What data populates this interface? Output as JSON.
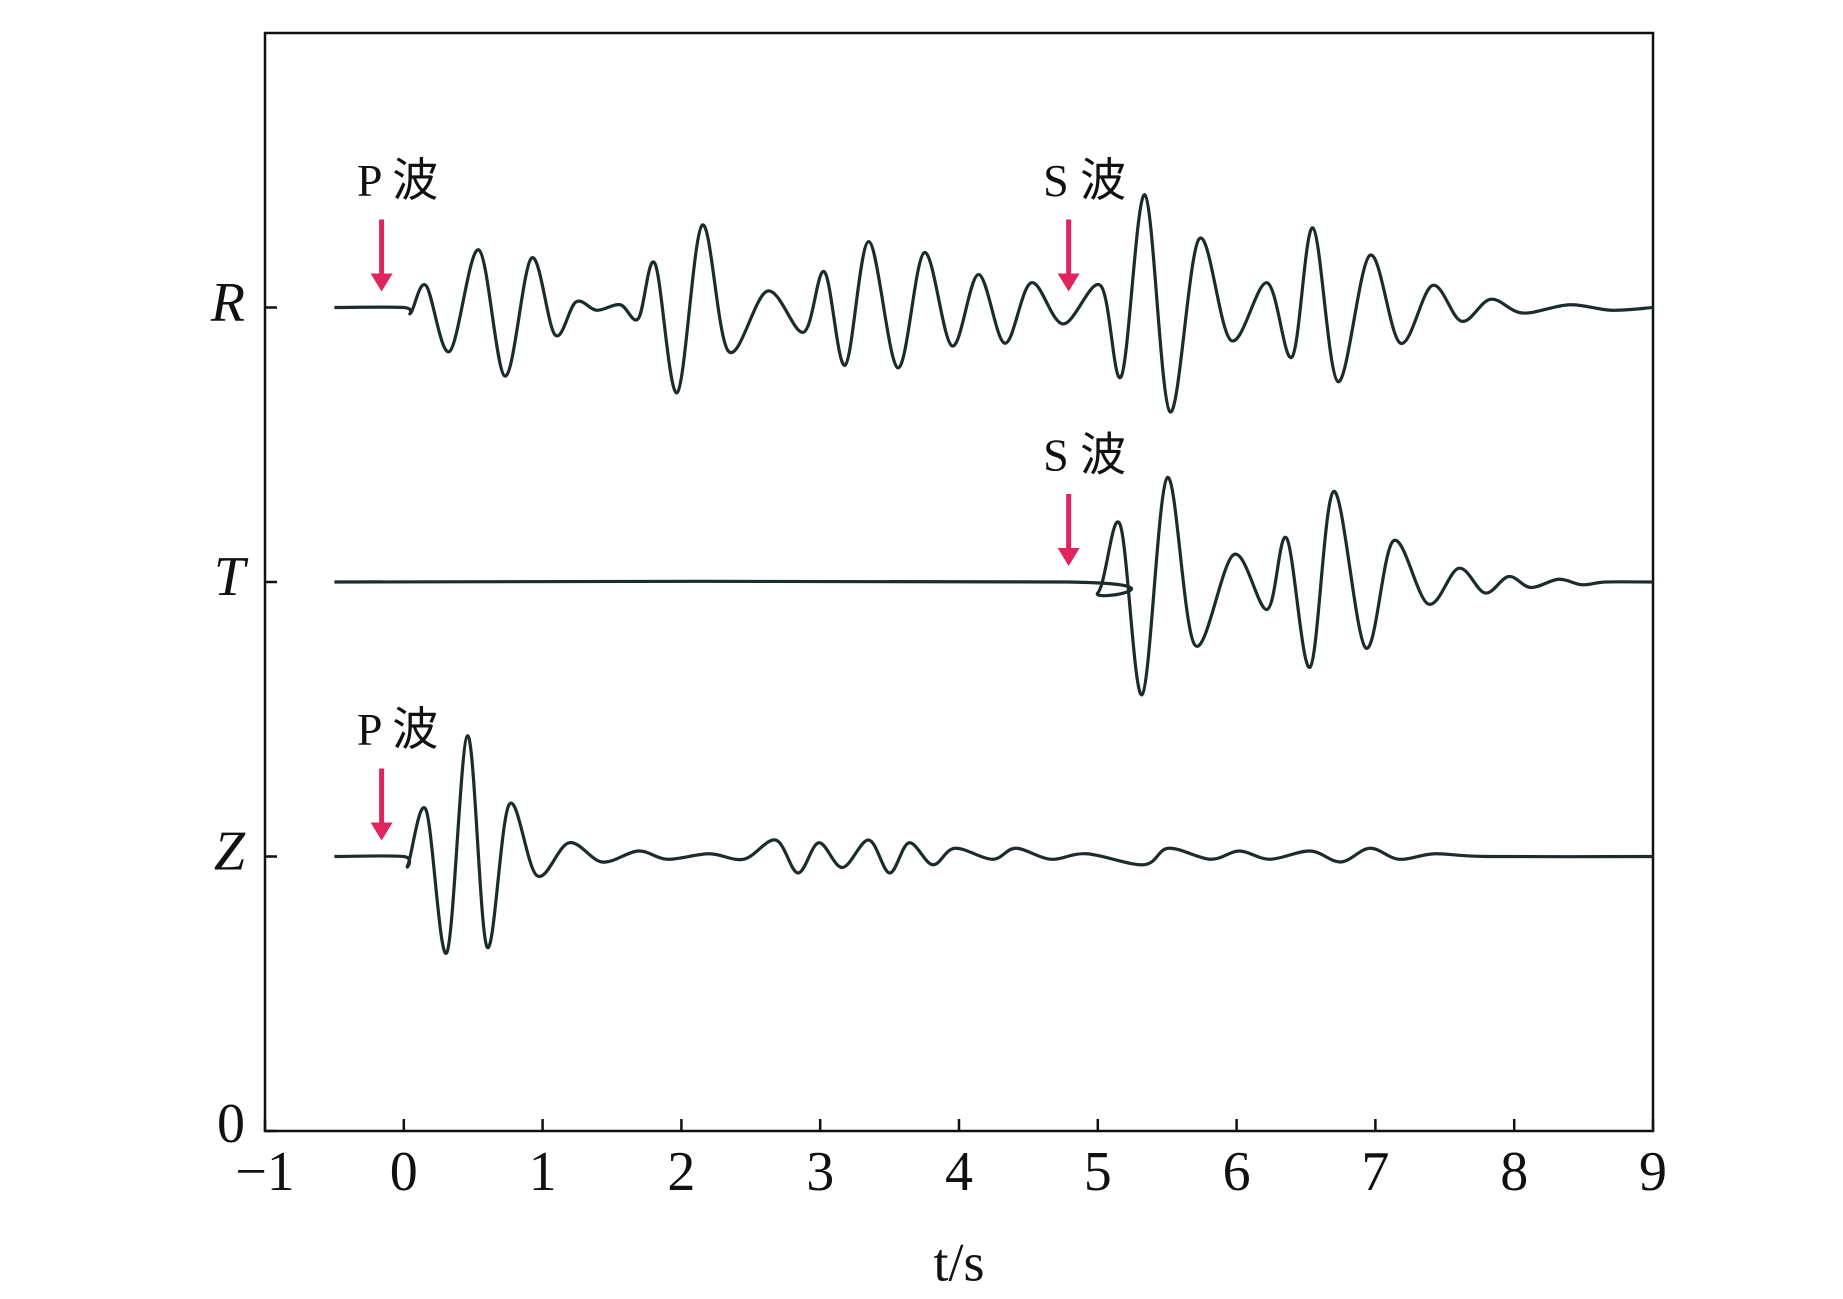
{
  "chart_data": {
    "type": "line",
    "xlabel": "t/s",
    "xlim": [
      -1,
      9
    ],
    "xticks": [
      {
        "value": -1,
        "label": "−1"
      },
      0,
      1,
      2,
      3,
      4,
      5,
      6,
      7,
      8,
      9
    ],
    "ylim": [
      0,
      4
    ],
    "yticks": [
      0,
      {
        "value": 1,
        "label": "Z"
      },
      {
        "value": 2,
        "label": "T"
      },
      {
        "value": 3,
        "label": "R"
      }
    ],
    "series": [
      {
        "color": "#1c2b2b",
        "x": [
          -0.5,
          0,
          0.05,
          0.16,
          0.33,
          0.54,
          0.73,
          0.92,
          1.09,
          1.24,
          1.39,
          1.56,
          1.69,
          1.81,
          1.97,
          2.15,
          2.34,
          2.62,
          2.88,
          3.03,
          3.18,
          3.35,
          3.56,
          3.75,
          3.95,
          4.14,
          4.33,
          4.52,
          4.75,
          5.02,
          5.17,
          5.34,
          5.52,
          5.73,
          5.96,
          6.22,
          6.4,
          6.55,
          6.73,
          6.96,
          7.18,
          7.41,
          7.62,
          7.83,
          8.06,
          8.4,
          8.7,
          9
        ],
        "values": [
          3.0,
          3.0,
          2.98,
          3.08,
          2.84,
          3.21,
          2.75,
          3.18,
          2.9,
          3.02,
          2.99,
          3.01,
          2.96,
          3.16,
          2.69,
          3.3,
          2.84,
          3.06,
          2.91,
          3.13,
          2.79,
          3.24,
          2.78,
          3.2,
          2.86,
          3.12,
          2.87,
          3.09,
          2.94,
          3.08,
          2.75,
          3.41,
          2.62,
          3.25,
          2.88,
          3.09,
          2.82,
          3.29,
          2.73,
          3.19,
          2.87,
          3.08,
          2.95,
          3.03,
          2.98,
          3.01,
          2.99,
          3.0
        ]
      },
      {
        "color": "#1c2b2b",
        "x": [
          -0.5,
          4.79,
          5.0,
          5.16,
          5.32,
          5.5,
          5.7,
          5.98,
          6.22,
          6.36,
          6.53,
          6.7,
          6.93,
          7.13,
          7.38,
          7.6,
          7.79,
          7.96,
          8.12,
          8.32,
          8.49,
          8.66,
          9
        ],
        "values": [
          2.0,
          2.0,
          1.96,
          2.21,
          1.59,
          2.38,
          1.77,
          2.1,
          1.9,
          2.16,
          1.69,
          2.33,
          1.76,
          2.15,
          1.92,
          2.05,
          1.96,
          2.02,
          1.98,
          2.01,
          1.99,
          2.0,
          2.0
        ]
      },
      {
        "color": "#1c2b2b",
        "x": [
          -0.5,
          0,
          0.03,
          0.16,
          0.31,
          0.46,
          0.6,
          0.76,
          0.96,
          1.19,
          1.43,
          1.69,
          1.9,
          2.2,
          2.45,
          2.68,
          2.84,
          2.99,
          3.16,
          3.35,
          3.5,
          3.64,
          3.81,
          3.97,
          4.24,
          4.41,
          4.66,
          4.92,
          5.33,
          5.51,
          5.81,
          6.02,
          6.24,
          6.53,
          6.75,
          6.96,
          7.17,
          7.43,
          7.81,
          9
        ],
        "values": [
          1.0,
          1.0,
          0.97,
          1.17,
          0.65,
          1.44,
          0.67,
          1.19,
          0.93,
          1.05,
          0.98,
          1.02,
          0.99,
          1.01,
          0.99,
          1.06,
          0.94,
          1.05,
          0.96,
          1.06,
          0.94,
          1.05,
          0.97,
          1.03,
          0.99,
          1.03,
          0.99,
          1.01,
          0.97,
          1.03,
          0.99,
          1.02,
          0.99,
          1.02,
          0.98,
          1.03,
          0.99,
          1.01,
          1.0,
          1.0
        ]
      }
    ],
    "annotations": [
      {
        "text": "P 波",
        "x": -0.16,
        "y": 3,
        "color": "#e0245e"
      },
      {
        "text": "S 波",
        "x": 4.79,
        "y": 3,
        "color": "#e0245e"
      },
      {
        "text": "S 波",
        "x": 4.79,
        "y": 2,
        "color": "#e0245e"
      },
      {
        "text": "P 波",
        "x": -0.16,
        "y": 1,
        "color": "#e0245e"
      }
    ]
  }
}
